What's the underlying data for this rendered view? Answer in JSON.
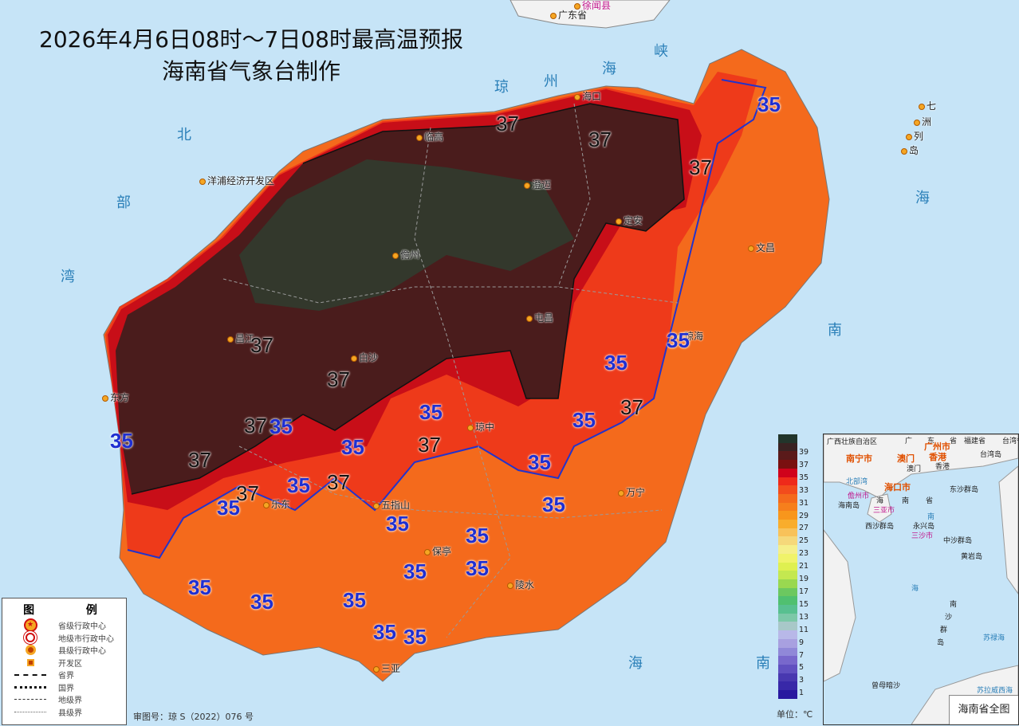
{
  "title": {
    "line1": "2026年4月6日08时～7日08时最高温预报",
    "line2": "海南省气象台制作"
  },
  "mainland": {
    "province": "广东省",
    "county": "徐闻县"
  },
  "seas": [
    "琼",
    "州",
    "海",
    "峡",
    "北",
    "部",
    "湾",
    "海",
    "南",
    "海",
    "南",
    "海",
    "七",
    "洲",
    "列",
    "岛"
  ],
  "cities": [
    "海口",
    "临高",
    "澄迈",
    "洋浦经济开发区",
    "定安",
    "儋州",
    "文昌",
    "屯昌",
    "琼海",
    "昌江",
    "白沙",
    "东方",
    "琼中",
    "万宁",
    "五指山",
    "乐东",
    "保亭",
    "陵水",
    "三亚"
  ],
  "contours_37": [
    "37",
    "37",
    "37",
    "37",
    "37",
    "37",
    "37",
    "37",
    "37",
    "37",
    "37"
  ],
  "contours_35": [
    "35",
    "35",
    "35",
    "35",
    "35",
    "35",
    "35",
    "35",
    "35",
    "35",
    "35",
    "35",
    "35",
    "35",
    "35",
    "35",
    "35",
    "35",
    "35",
    "35"
  ],
  "legend": {
    "title": "图 例",
    "items": [
      "省级行政中心",
      "地级市行政中心",
      "县级行政中心",
      "开发区",
      "省界",
      "国界",
      "地级界",
      "县级界"
    ]
  },
  "approval": "审图号：琼 S（2022）076 号",
  "colorbar": {
    "ticks": [
      "39",
      "37",
      "35",
      "33",
      "31",
      "29",
      "27",
      "25",
      "23",
      "21",
      "19",
      "17",
      "15",
      "13",
      "11",
      "9",
      "7",
      "5",
      "3",
      "1"
    ],
    "unit": "单位：℃",
    "colors": [
      "#22352b",
      "#3a2222",
      "#5a1a1a",
      "#7a1010",
      "#d0021b",
      "#ee2a1a",
      "#f24c1c",
      "#f46a1c",
      "#f67f1c",
      "#f8961c",
      "#f9ad2c",
      "#f8c25a",
      "#f5d87a",
      "#f5ef8a",
      "#f0f36a",
      "#dff050",
      "#c4e850",
      "#99d850",
      "#6cc860",
      "#50c070",
      "#58c090",
      "#7cc8a8",
      "#a8c8c8",
      "#b8b8e8",
      "#a8a0e0",
      "#9088d8",
      "#7868cc",
      "#6050c0",
      "#4838b0",
      "#3828a8",
      "#2818a0"
    ]
  },
  "inset": {
    "title": "海南省全图",
    "labels": [
      "广西壮族自治区",
      "广",
      "东",
      "省",
      "福建省",
      "台湾省",
      "台湾岛",
      "南宁市",
      "广州市",
      "澳门",
      "香港",
      "澳门",
      "香港",
      "北部湾",
      "海口市",
      "儋州市",
      "海南岛",
      "海",
      "南",
      "省",
      "三亚市",
      "东沙群岛",
      "南",
      "西沙群岛",
      "永兴岛",
      "三沙市",
      "中沙群岛",
      "黄岩岛",
      "海",
      "南",
      "沙",
      "群",
      "岛",
      "苏禄海",
      "曾母暗沙",
      "苏拉威西海"
    ]
  },
  "colors": {
    "sea": "#c6e4f7",
    "t33": "#f46a1c",
    "t35": "#ee3a1a",
    "t37": "#c80e18",
    "t39": "#4a1c1c",
    "t40": "#2a3a2a",
    "contour": "#2233cc"
  }
}
